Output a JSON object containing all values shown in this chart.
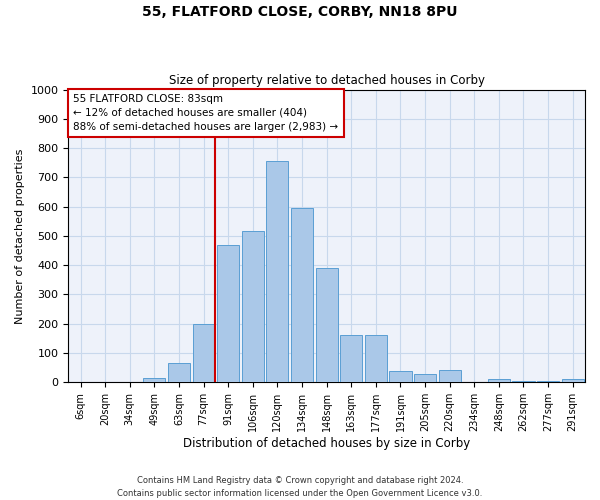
{
  "title": "55, FLATFORD CLOSE, CORBY, NN18 8PU",
  "subtitle": "Size of property relative to detached houses in Corby",
  "xlabel": "Distribution of detached houses by size in Corby",
  "ylabel": "Number of detached properties",
  "bins": [
    "6sqm",
    "20sqm",
    "34sqm",
    "49sqm",
    "63sqm",
    "77sqm",
    "91sqm",
    "106sqm",
    "120sqm",
    "134sqm",
    "148sqm",
    "163sqm",
    "177sqm",
    "191sqm",
    "205sqm",
    "220sqm",
    "234sqm",
    "248sqm",
    "262sqm",
    "277sqm",
    "291sqm"
  ],
  "values": [
    0,
    0,
    0,
    15,
    65,
    200,
    470,
    515,
    755,
    595,
    390,
    160,
    160,
    40,
    28,
    43,
    0,
    12,
    5,
    3,
    10
  ],
  "bar_color": "#aac8e8",
  "bar_edge_color": "#5a9fd4",
  "grid_color": "#c8d8ec",
  "background_color": "#eef2fa",
  "annotation_text": "55 FLATFORD CLOSE: 83sqm\n← 12% of detached houses are smaller (404)\n88% of semi-detached houses are larger (2,983) →",
  "annotation_box_color": "#ffffff",
  "annotation_border_color": "#cc0000",
  "vline_color": "#cc0000",
  "ylim": [
    0,
    1000
  ],
  "yticks": [
    0,
    100,
    200,
    300,
    400,
    500,
    600,
    700,
    800,
    900,
    1000
  ],
  "footer": "Contains HM Land Registry data © Crown copyright and database right 2024.\nContains public sector information licensed under the Open Government Licence v3.0."
}
